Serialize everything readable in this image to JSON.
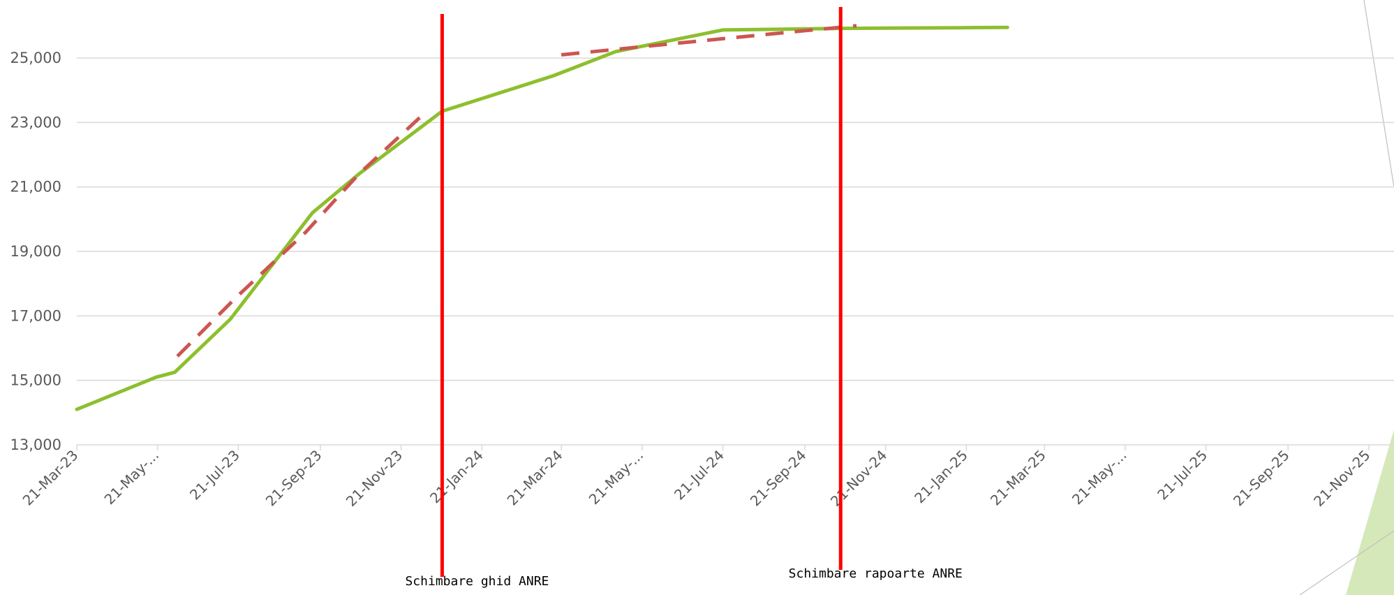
{
  "chart_data": {
    "type": "line",
    "title": "",
    "xlabel": "",
    "ylabel": "",
    "ylim": [
      13000,
      26800
    ],
    "y_ticks": [
      "13,000",
      "15,000",
      "17,000",
      "19,000",
      "21,000",
      "23,000",
      "25,000"
    ],
    "y_tick_values": [
      13000,
      15000,
      17000,
      19000,
      21000,
      23000,
      25000
    ],
    "x_range": [
      "2023-03-21",
      "2025-12-10"
    ],
    "x_ticks": [
      {
        "date": "2023-03-21",
        "label": "21-Mar-23"
      },
      {
        "date": "2023-05-21",
        "label": "21-May-..."
      },
      {
        "date": "2023-07-21",
        "label": "21-Jul-23"
      },
      {
        "date": "2023-09-21",
        "label": "21-Sep-23"
      },
      {
        "date": "2023-11-21",
        "label": "21-Nov-23"
      },
      {
        "date": "2024-01-21",
        "label": "21-Jan-24"
      },
      {
        "date": "2024-03-21",
        "label": "21-Mar-24"
      },
      {
        "date": "2024-05-21",
        "label": "21-May-..."
      },
      {
        "date": "2024-07-21",
        "label": "21-Jul-24"
      },
      {
        "date": "2024-09-21",
        "label": "21-Sep-24"
      },
      {
        "date": "2024-11-21",
        "label": "21-Nov-24"
      },
      {
        "date": "2025-01-21",
        "label": "21-Jan-25"
      },
      {
        "date": "2025-03-21",
        "label": "21-Mar-25"
      },
      {
        "date": "2025-05-21",
        "label": "21-May-..."
      },
      {
        "date": "2025-07-21",
        "label": "21-Jul-25"
      },
      {
        "date": "2025-09-21",
        "label": "21-Sep-25"
      },
      {
        "date": "2025-11-21",
        "label": "21-Nov-25"
      }
    ],
    "grid": true,
    "legend": "none",
    "series": [
      {
        "color": "#8dbf2e",
        "style": "solid",
        "points": [
          {
            "x": "2023-03-21",
            "y": 14100
          },
          {
            "x": "2023-05-20",
            "y": 15100
          },
          {
            "x": "2023-06-03",
            "y": 15250
          },
          {
            "x": "2023-07-15",
            "y": 16900
          },
          {
            "x": "2023-09-15",
            "y": 20200
          },
          {
            "x": "2023-10-20",
            "y": 21400
          },
          {
            "x": "2023-12-22",
            "y": 23350
          },
          {
            "x": "2024-03-15",
            "y": 24450
          },
          {
            "x": "2024-05-01",
            "y": 25200
          },
          {
            "x": "2024-07-21",
            "y": 25870
          },
          {
            "x": "2024-10-20",
            "y": 25920
          },
          {
            "x": "2025-01-15",
            "y": 25940
          },
          {
            "x": "2025-02-21",
            "y": 25950
          }
        ]
      },
      {
        "color": "#cc5650",
        "style": "dashed",
        "points": [
          {
            "x": "2023-06-05",
            "y": 15750
          },
          {
            "x": "2023-07-20",
            "y": 17600
          },
          {
            "x": "2023-09-10",
            "y": 19600
          },
          {
            "x": "2023-10-20",
            "y": 21400
          },
          {
            "x": "2023-12-05",
            "y": 23150
          }
        ]
      },
      {
        "color": "#cc5650",
        "style": "dashed",
        "points": [
          {
            "x": "2024-03-21",
            "y": 25100
          },
          {
            "x": "2024-05-21",
            "y": 25350
          },
          {
            "x": "2024-07-21",
            "y": 25600
          },
          {
            "x": "2024-09-21",
            "y": 25850
          },
          {
            "x": "2024-10-30",
            "y": 26000
          }
        ]
      }
    ],
    "annotations": [
      {
        "type": "vline",
        "x": "2023-12-22",
        "color": "#ff0000",
        "label": "Schimbare ghid ANRE"
      },
      {
        "type": "vline",
        "x": "2024-10-18",
        "color": "#ff0000",
        "label": "Schimbare rapoarte ANRE"
      }
    ]
  }
}
